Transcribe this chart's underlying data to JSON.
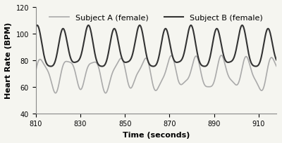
{
  "title": "",
  "xlabel": "Time (seconds)",
  "ylabel": "Heart Rate (BPM)",
  "xlim": [
    810,
    918
  ],
  "ylim": [
    40,
    120
  ],
  "xticks": [
    810,
    830,
    850,
    870,
    890,
    910
  ],
  "yticks": [
    40,
    60,
    80,
    100,
    120
  ],
  "x_start": 810,
  "x_end": 918,
  "subject_a_color": "#aaaaaa",
  "subject_b_color": "#333333",
  "subject_a_label": "Subject A (female)",
  "subject_b_label": "Subject B (female)",
  "subject_a_linewidth": 1.2,
  "subject_b_linewidth": 1.5,
  "subject_a_mean": 70,
  "subject_a_amp": 11,
  "subject_b_mean": 88,
  "subject_b_amp": 14,
  "period": 11.5,
  "phase_shift_b": 1.2,
  "background_color": "#f5f5f0",
  "legend_fontsize": 8,
  "axis_fontsize": 8,
  "tick_fontsize": 7
}
